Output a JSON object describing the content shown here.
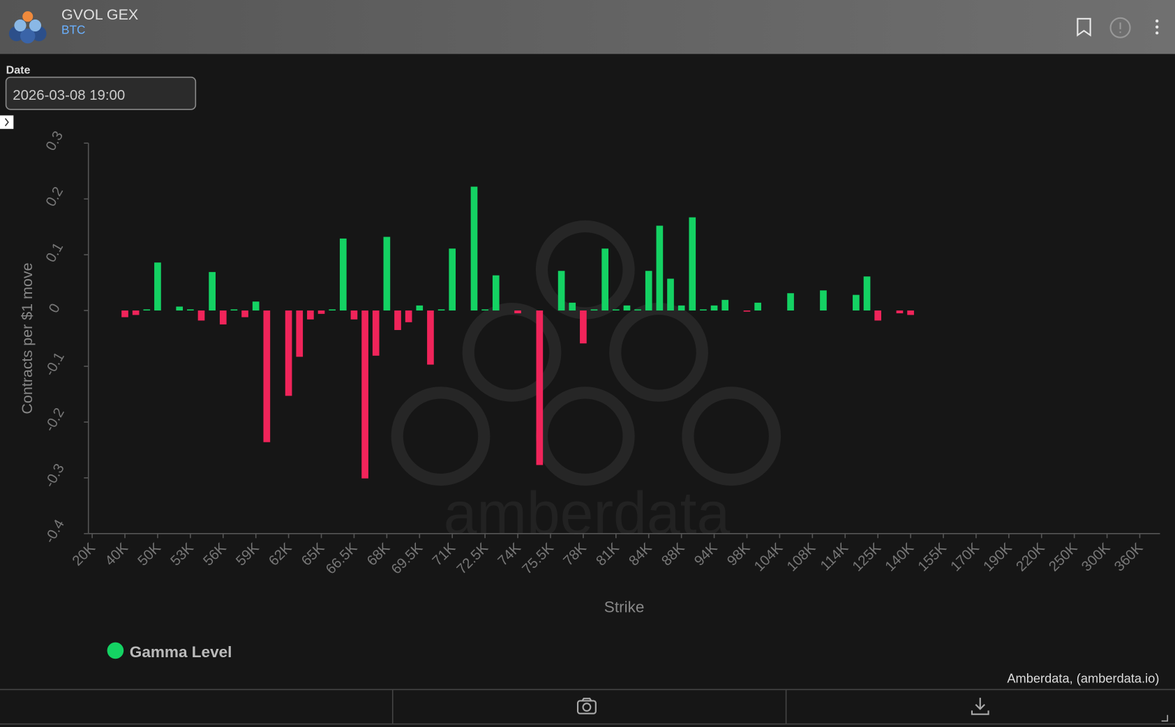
{
  "header": {
    "title": "GVOL GEX",
    "subtitle": "BTC"
  },
  "date_filter": {
    "label": "Date",
    "value": "2026-03-08 19:00"
  },
  "watermark": "amberdata",
  "credits": "Amberdata, (amberdata.io)",
  "chart_data": {
    "type": "bar",
    "xlabel": "Strike",
    "ylabel": "Contracts per $1 move",
    "legend": [
      "Gamma Level"
    ],
    "positive_color": "#14d263",
    "negative_color": "#f0245a",
    "ylim": [
      -0.4,
      0.3
    ],
    "yticks": [
      0.3,
      0.2,
      0.1,
      0,
      -0.1,
      -0.2,
      -0.3,
      -0.4
    ],
    "categories": [
      "20K",
      null,
      null,
      "40K",
      null,
      null,
      "50K",
      null,
      null,
      "53K",
      null,
      null,
      "56K",
      null,
      null,
      "59K",
      null,
      null,
      "62K",
      null,
      null,
      "65K",
      null,
      null,
      "66.5K",
      null,
      null,
      "68K",
      null,
      null,
      "69.5K",
      null,
      null,
      "71K",
      null,
      null,
      "72.5K",
      null,
      null,
      "74K",
      null,
      null,
      "75.5K",
      null,
      null,
      "78K",
      null,
      null,
      "81K",
      null,
      null,
      "84K",
      null,
      null,
      "88K",
      null,
      null,
      "94K",
      null,
      null,
      "98K",
      null,
      null,
      "104K",
      null,
      null,
      "108K",
      null,
      null,
      "114K",
      null,
      null,
      "125K",
      null,
      null,
      "140K",
      null,
      null,
      "155K",
      null,
      null,
      "170K",
      null,
      null,
      "190K",
      null,
      null,
      "220K",
      null,
      null,
      "250K",
      null,
      null,
      "300K",
      null,
      null,
      "360K"
    ],
    "values": [
      0,
      0,
      0,
      -0.012,
      -0.008,
      0.002,
      0.086,
      0,
      0.007,
      0.002,
      -0.018,
      0.069,
      -0.025,
      0.002,
      -0.012,
      0.016,
      -0.236,
      0,
      -0.153,
      -0.083,
      -0.016,
      -0.006,
      0.002,
      0.129,
      -0.016,
      -0.301,
      -0.081,
      0.132,
      -0.035,
      -0.021,
      0.009,
      -0.097,
      0.002,
      0.111,
      0,
      0.222,
      0.002,
      0.063,
      0,
      -0.005,
      0,
      -0.277,
      0,
      0.071,
      0.014,
      -0.059,
      0.002,
      0.111,
      0.002,
      0.009,
      0.002,
      0.071,
      0.152,
      0.057,
      0.009,
      0.167,
      0.002,
      0.009,
      0.019,
      0,
      -0.002,
      0.014,
      0,
      0,
      0.031,
      0,
      0,
      0.036,
      0,
      0,
      0.028,
      0.061,
      -0.018,
      0,
      -0.005,
      -0.008,
      0,
      0,
      0,
      0,
      0,
      0,
      0,
      0,
      0,
      0,
      0,
      0,
      0,
      0,
      0,
      0,
      0,
      0,
      0,
      0,
      0
    ]
  }
}
